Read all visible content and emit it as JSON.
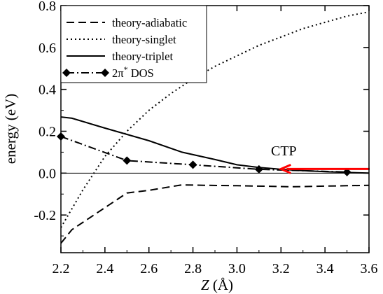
{
  "chart_data": {
    "type": "line",
    "title": "",
    "xlabel": "Z (Å)",
    "xlabel_var": "Z",
    "xlabel_unit": " (Å)",
    "ylabel": "energy (eV)",
    "xlim": [
      2.2,
      3.6
    ],
    "ylim": [
      -0.38,
      0.8
    ],
    "xticks": [
      "2.2",
      "2.4",
      "2.6",
      "2.8",
      "3.0",
      "3.2",
      "3.4",
      "3.6"
    ],
    "yticks": [
      "-0.2",
      "0.0",
      "0.2",
      "0.4",
      "0.6",
      "0.8"
    ],
    "grid": false,
    "legend_position": "top-left",
    "series": [
      {
        "name": "theory-adiabatic",
        "style": "dashed",
        "x": [
          2.2,
          2.25,
          2.5,
          2.6,
          2.75,
          2.85,
          3.0,
          3.25,
          3.5,
          3.6
        ],
        "y": [
          -0.335,
          -0.27,
          -0.095,
          -0.082,
          -0.056,
          -0.058,
          -0.06,
          -0.065,
          -0.06,
          -0.058
        ]
      },
      {
        "name": "theory-singlet",
        "style": "dotted",
        "x": [
          2.2,
          2.25,
          2.3,
          2.4,
          2.5,
          2.6,
          2.7,
          2.8,
          2.9,
          3.0,
          3.1,
          3.2,
          3.3,
          3.4,
          3.5,
          3.6
        ],
        "y": [
          -0.26,
          -0.17,
          -0.08,
          0.08,
          0.2,
          0.3,
          0.38,
          0.45,
          0.51,
          0.56,
          0.61,
          0.65,
          0.69,
          0.72,
          0.75,
          0.77
        ]
      },
      {
        "name": "theory-triplet",
        "style": "solid",
        "x": [
          2.2,
          2.25,
          2.4,
          2.5,
          2.6,
          2.75,
          2.9,
          3.0,
          3.1,
          3.2,
          3.3,
          3.4,
          3.5,
          3.6
        ],
        "y": [
          0.268,
          0.262,
          0.215,
          0.185,
          0.155,
          0.1,
          0.065,
          0.04,
          0.027,
          0.018,
          0.012,
          0.007,
          0.003,
          0.0
        ]
      },
      {
        "name": "2π* DOS",
        "name_base": "2π",
        "name_sup": "*",
        "name_suffix": " DOS",
        "style": "dash-dot",
        "marker": "diamond",
        "x": [
          2.2,
          2.5,
          2.8,
          3.1,
          3.5
        ],
        "y": [
          0.175,
          0.06,
          0.04,
          0.018,
          0.005
        ]
      }
    ],
    "reference_line": {
      "y": 0.0
    },
    "annotation": {
      "text": "CTP",
      "color": "#ff0000",
      "arrow_from": [
        3.6,
        0.02
      ],
      "arrow_to": [
        3.2,
        0.02
      ]
    }
  }
}
